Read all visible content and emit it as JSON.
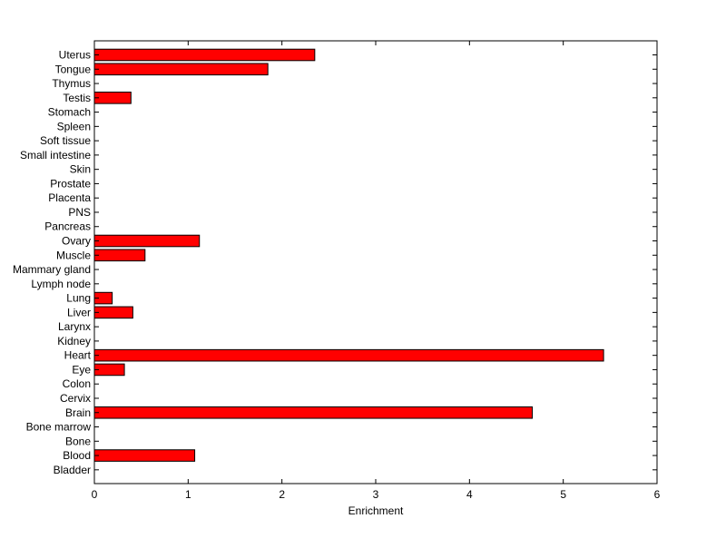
{
  "chart_data": {
    "type": "bar",
    "orientation": "horizontal",
    "title": "",
    "xlabel": "Enrichment",
    "ylabel": "",
    "xlim": [
      0,
      6
    ],
    "xticks": [
      0,
      1,
      2,
      3,
      4,
      5,
      6
    ],
    "grid": false,
    "bar_color": "#ff0000",
    "bar_edge_color": "#000000",
    "categories": [
      "Uterus",
      "Tongue",
      "Thymus",
      "Testis",
      "Stomach",
      "Spleen",
      "Soft tissue",
      "Small intestine",
      "Skin",
      "Prostate",
      "Placenta",
      "PNS",
      "Pancreas",
      "Ovary",
      "Muscle",
      "Mammary gland",
      "Lymph node",
      "Lung",
      "Liver",
      "Larynx",
      "Kidney",
      "Heart",
      "Eye",
      "Colon",
      "Cervix",
      "Brain",
      "Bone marrow",
      "Bone",
      "Blood",
      "Bladder"
    ],
    "values": [
      2.35,
      1.85,
      0,
      0.39,
      0,
      0,
      0,
      0,
      0,
      0,
      0,
      0,
      0,
      1.12,
      0.54,
      0,
      0,
      0.19,
      0.41,
      0,
      0,
      5.43,
      0.32,
      0,
      0,
      4.67,
      0,
      0,
      1.07,
      0
    ]
  }
}
